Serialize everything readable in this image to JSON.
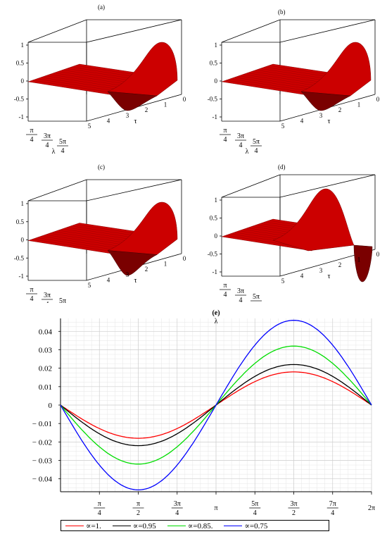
{
  "panels": [
    {
      "label": "(a)",
      "id": "a"
    },
    {
      "label": "(b)",
      "id": "b"
    },
    {
      "label": "(c)",
      "id": "c"
    },
    {
      "label": "(d)",
      "id": "d"
    }
  ],
  "surface_axes": {
    "z_ticks": [
      "1",
      "0.5",
      "0",
      "-0.5",
      "-1"
    ],
    "tau_ticks": [
      "0",
      "1",
      "2",
      "3",
      "4",
      "5"
    ],
    "lambda_ticks": [
      "π/4",
      "3π/4",
      "5π/4"
    ],
    "tau_label": "τ",
    "lambda_label": "λ"
  },
  "colors": {
    "surface": "#cc0000",
    "surface_dark": "#7a0000"
  },
  "chart_data": {
    "type": "line",
    "title": "(e)",
    "xlabel": "λ",
    "ylabel": "",
    "xlim": [
      0,
      6.2832
    ],
    "ylim": [
      -0.047,
      0.047
    ],
    "x_ticks": [
      {
        "value": 0.7854,
        "label": "π/4"
      },
      {
        "value": 1.5708,
        "label": "π/2"
      },
      {
        "value": 2.3562,
        "label": "3π/4"
      },
      {
        "value": 3.1416,
        "label": "π"
      },
      {
        "value": 3.927,
        "label": "5π/4"
      },
      {
        "value": 4.7124,
        "label": "3π/2"
      },
      {
        "value": 5.4978,
        "label": "7π/4"
      },
      {
        "value": 6.2832,
        "label": "2π"
      }
    ],
    "y_ticks": [
      0.04,
      0.03,
      0.02,
      0.01,
      0,
      -0.01,
      -0.02,
      -0.03,
      -0.04
    ],
    "y_tick_labels": [
      "0.04",
      "0.03",
      "0.02",
      "0.01",
      "0",
      "− 0.01",
      "− 0.02",
      "− 0.03",
      "− 0.04"
    ],
    "grid": true,
    "legend_position": "bottom",
    "series": [
      {
        "name": "∝=1.",
        "color": "#ff0000",
        "amplitude": 0.018
      },
      {
        "name": "∝=0.95",
        "color": "#000000",
        "amplitude": 0.022
      },
      {
        "name": "∝=0.85.",
        "color": "#00dd00",
        "amplitude": 0.032
      },
      {
        "name": "∝=0.75",
        "color": "#0000ff",
        "amplitude": 0.046
      }
    ]
  }
}
